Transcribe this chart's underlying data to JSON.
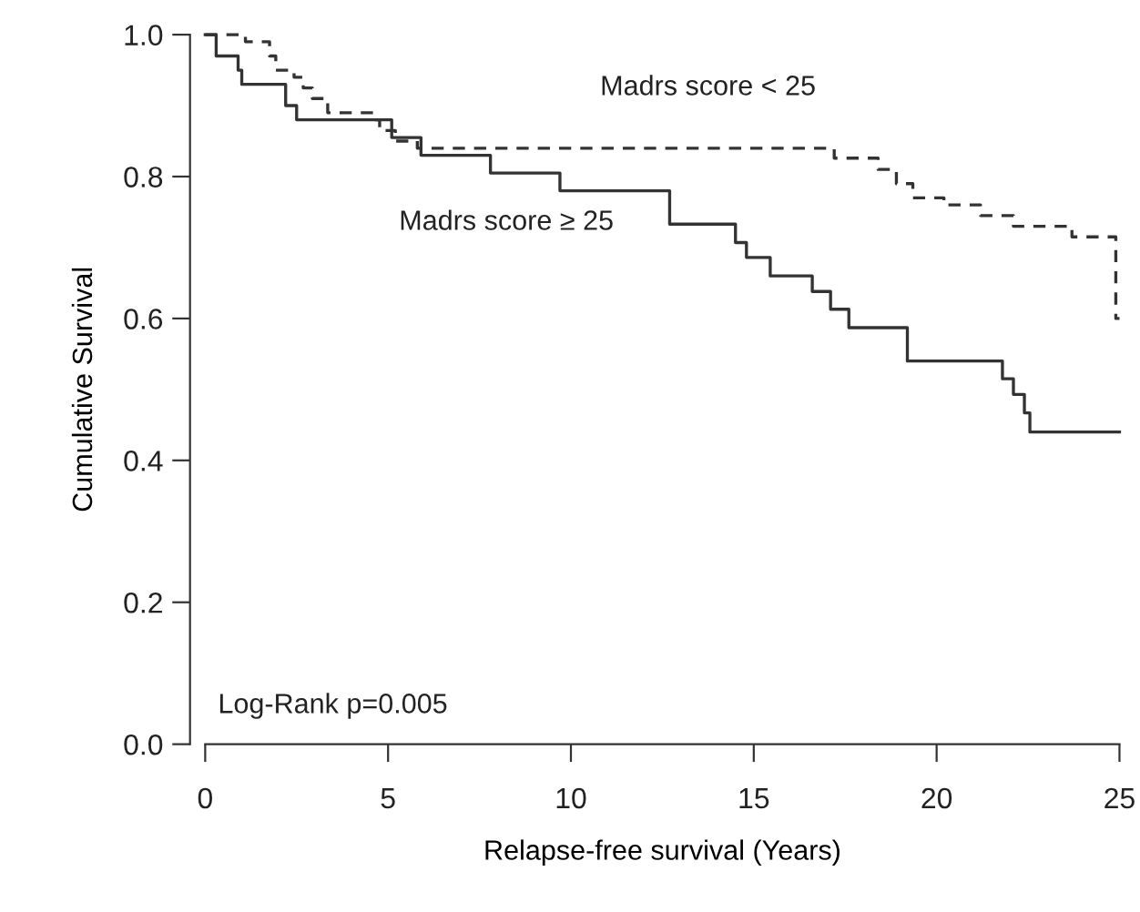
{
  "chart_data": {
    "type": "step",
    "xlabel": "Relapse-free survival (Years)",
    "ylabel": "Cumulative Survival",
    "xlim": [
      0,
      25
    ],
    "ylim": [
      0,
      1
    ],
    "xticks": [
      0,
      5,
      10,
      15,
      20,
      25
    ],
    "yticks": [
      {
        "value": 0,
        "label": "0.0"
      },
      {
        "value": 0.2,
        "label": "0.2"
      },
      {
        "value": 0.4,
        "label": "0.4"
      },
      {
        "value": 0.6,
        "label": "0.6"
      },
      {
        "value": 0.8,
        "label": "0.8"
      },
      {
        "value": 1,
        "label": "1.0"
      }
    ],
    "grid": false,
    "legend": false,
    "series": [
      {
        "name": "Madrs score < 25",
        "color": "#333333",
        "line_style": "dashed",
        "x": [
          0,
          1.1,
          1.76,
          1.93,
          2.43,
          2.68,
          2.93,
          3.35,
          4.6,
          4.77,
          5.2,
          5.8,
          17.2,
          18.4,
          18.9,
          19.35,
          20.2,
          21.2,
          22.1,
          23.7,
          24.9,
          25
        ],
        "values": [
          1.0,
          0.99,
          0.97,
          0.95,
          0.94,
          0.925,
          0.91,
          0.89,
          0.88,
          0.865,
          0.85,
          0.84,
          0.826,
          0.81,
          0.79,
          0.77,
          0.76,
          0.745,
          0.73,
          0.715,
          0.6,
          0.6
        ]
      },
      {
        "name": "Madrs score ≥ 25",
        "color": "#333333",
        "line_style": "solid",
        "x": [
          0,
          0.3,
          0.9,
          1.0,
          2.2,
          2.5,
          5.1,
          5.9,
          7.8,
          9.7,
          12.7,
          14.5,
          14.8,
          15.45,
          16.6,
          17.1,
          17.6,
          19.2,
          21.8,
          22.1,
          22.4,
          22.55,
          25
        ],
        "values": [
          1.0,
          0.97,
          0.95,
          0.93,
          0.9,
          0.88,
          0.855,
          0.83,
          0.805,
          0.78,
          0.733,
          0.707,
          0.686,
          0.66,
          0.638,
          0.613,
          0.587,
          0.54,
          0.515,
          0.493,
          0.467,
          0.44,
          0.44
        ]
      }
    ],
    "annotations": [
      "Log-Rank p=0.005"
    ]
  }
}
